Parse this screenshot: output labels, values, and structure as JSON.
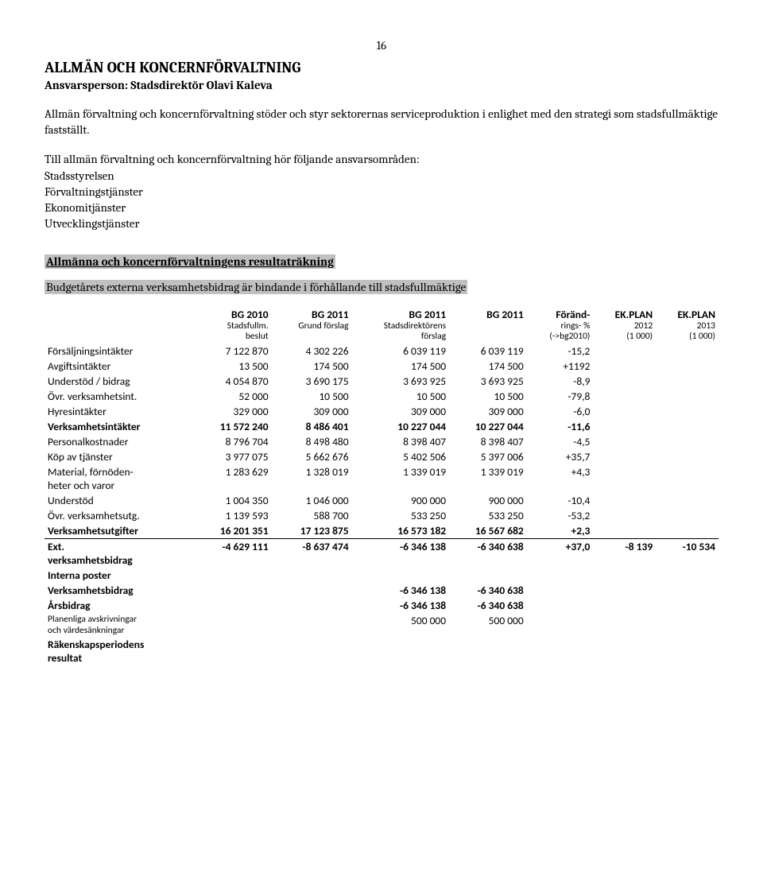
{
  "page_number": "16",
  "title": "ALLMÄN OCH KONCERNFÖRVALTNING",
  "responsible": "Ansvarsperson: Stadsdirektör Olavi Kaleva",
  "intro": "Allmän förvaltning och koncernförvaltning stöder och styr sektorernas serviceproduktion i enlighet med den strategi som stadsfullmäktige fastställt.",
  "areas_intro": "Till allmän förvaltning och koncernförvaltning hör följande ansvarsområden:",
  "areas": [
    "Stadsstyrelsen",
    "Förvaltningstjänster",
    "Ekonomitjänster",
    "Utvecklingstjänster"
  ],
  "section_heading": "Allmänna och koncernförvaltningens resultaträkning",
  "binding_note": "Budgetårets externa verksamhetsbidrag är bindande i förhållande till stadsfullmäktige",
  "table": {
    "columns": [
      {
        "top": "",
        "sub": ""
      },
      {
        "top": "BG 2010",
        "sub": "Stadsfullm. beslut"
      },
      {
        "top": "BG 2011",
        "sub": "Grund förslag"
      },
      {
        "top": "BG 2011",
        "sub": "Stadsdirektörens förslag"
      },
      {
        "top": "BG 2011",
        "sub": ""
      },
      {
        "top": "Föränd-",
        "sub": "rings- % (->bg2010)"
      },
      {
        "top": "EK.PLAN",
        "sub": "2012 (1 000)"
      },
      {
        "top": "EK.PLAN",
        "sub": "2013 (1 000)"
      }
    ],
    "rows": [
      {
        "label": "Försäljningsintäkter",
        "c": [
          "7 122 870",
          "4 302 226",
          "6 039 119",
          "6 039 119",
          "-15,2",
          "",
          ""
        ]
      },
      {
        "label": "Avgiftsintäkter",
        "c": [
          "13 500",
          "174 500",
          "174 500",
          "174 500",
          "+1192",
          "",
          ""
        ]
      },
      {
        "label": "Understöd / bidrag",
        "c": [
          "4 054 870",
          "3 690 175",
          "3 693 925",
          "3 693 925",
          "-8,9",
          "",
          ""
        ]
      },
      {
        "label": "Övr. verksamhetsint.",
        "c": [
          "52 000",
          "10 500",
          "10 500",
          "10 500",
          "-79,8",
          "",
          ""
        ]
      },
      {
        "label": "Hyresintäkter",
        "c": [
          "329 000",
          "309 000",
          "309 000",
          "309 000",
          "-6,0",
          "",
          ""
        ]
      },
      {
        "label": "Verksamhetsintäkter",
        "bold": true,
        "c": [
          "11 572 240",
          "8 486 401",
          "10 227 044",
          "10 227 044",
          "-11,6",
          "",
          ""
        ]
      },
      {
        "label": "Personalkostnader",
        "c": [
          "8 796 704",
          "8 498 480",
          "8 398 407",
          "8 398 407",
          "-4,5",
          "",
          ""
        ]
      },
      {
        "label": "Köp av tjänster",
        "c": [
          "3 977 075",
          "5 662 676",
          "5 402 506",
          "5 397 006",
          "+35,7",
          "",
          ""
        ]
      },
      {
        "label": "Material, förnöden-",
        "sub": "heter och varor",
        "c": [
          "1 283 629",
          "1 328 019",
          "1 339 019",
          "1 339 019",
          "+4,3",
          "",
          ""
        ]
      },
      {
        "label": "Understöd",
        "c": [
          "1 004 350",
          "1 046 000",
          "900 000",
          "900 000",
          "-10,4",
          "",
          ""
        ]
      },
      {
        "label": "Övr. verksamhetsutg.",
        "c": [
          "1 139 593",
          "588 700",
          "533 250",
          "533 250",
          "-53,2",
          "",
          ""
        ]
      },
      {
        "label": "Verksamhetsutgifter",
        "bold": true,
        "c": [
          "16 201 351",
          "17 123 875",
          "16 573 182",
          "16 567 682",
          "+2,3",
          "",
          ""
        ]
      },
      {
        "label": "Ext.",
        "sub": "verksamhetsbidrag",
        "bold": true,
        "sep": true,
        "c": [
          "-4 629 111",
          "-8 637 474",
          "-6 346 138",
          "-6 340 638",
          "+37,0",
          "-8 139",
          "-10 534"
        ]
      },
      {
        "label": "Interna poster",
        "bold": true,
        "c": [
          "",
          "",
          "",
          "",
          "",
          "",
          ""
        ]
      },
      {
        "label": "Verksamhetsbidrag",
        "bold": true,
        "c": [
          "",
          "",
          "-6 346 138",
          "-6 340 638",
          "",
          "",
          ""
        ]
      },
      {
        "label": "Årsbidrag",
        "bold": true,
        "c": [
          "",
          "",
          "-6 346 138",
          "-6 340 638",
          "",
          "",
          ""
        ]
      },
      {
        "label": "Planenliga avskrivningar",
        "sub": "och värdesänkningar",
        "small": true,
        "c": [
          "",
          "",
          "500 000",
          "500 000",
          "",
          "",
          ""
        ]
      },
      {
        "label": "Räkenskapsperiodens",
        "sub": "resultat",
        "bold": true,
        "c": [
          "",
          "",
          "",
          "",
          "",
          "",
          ""
        ]
      }
    ]
  }
}
